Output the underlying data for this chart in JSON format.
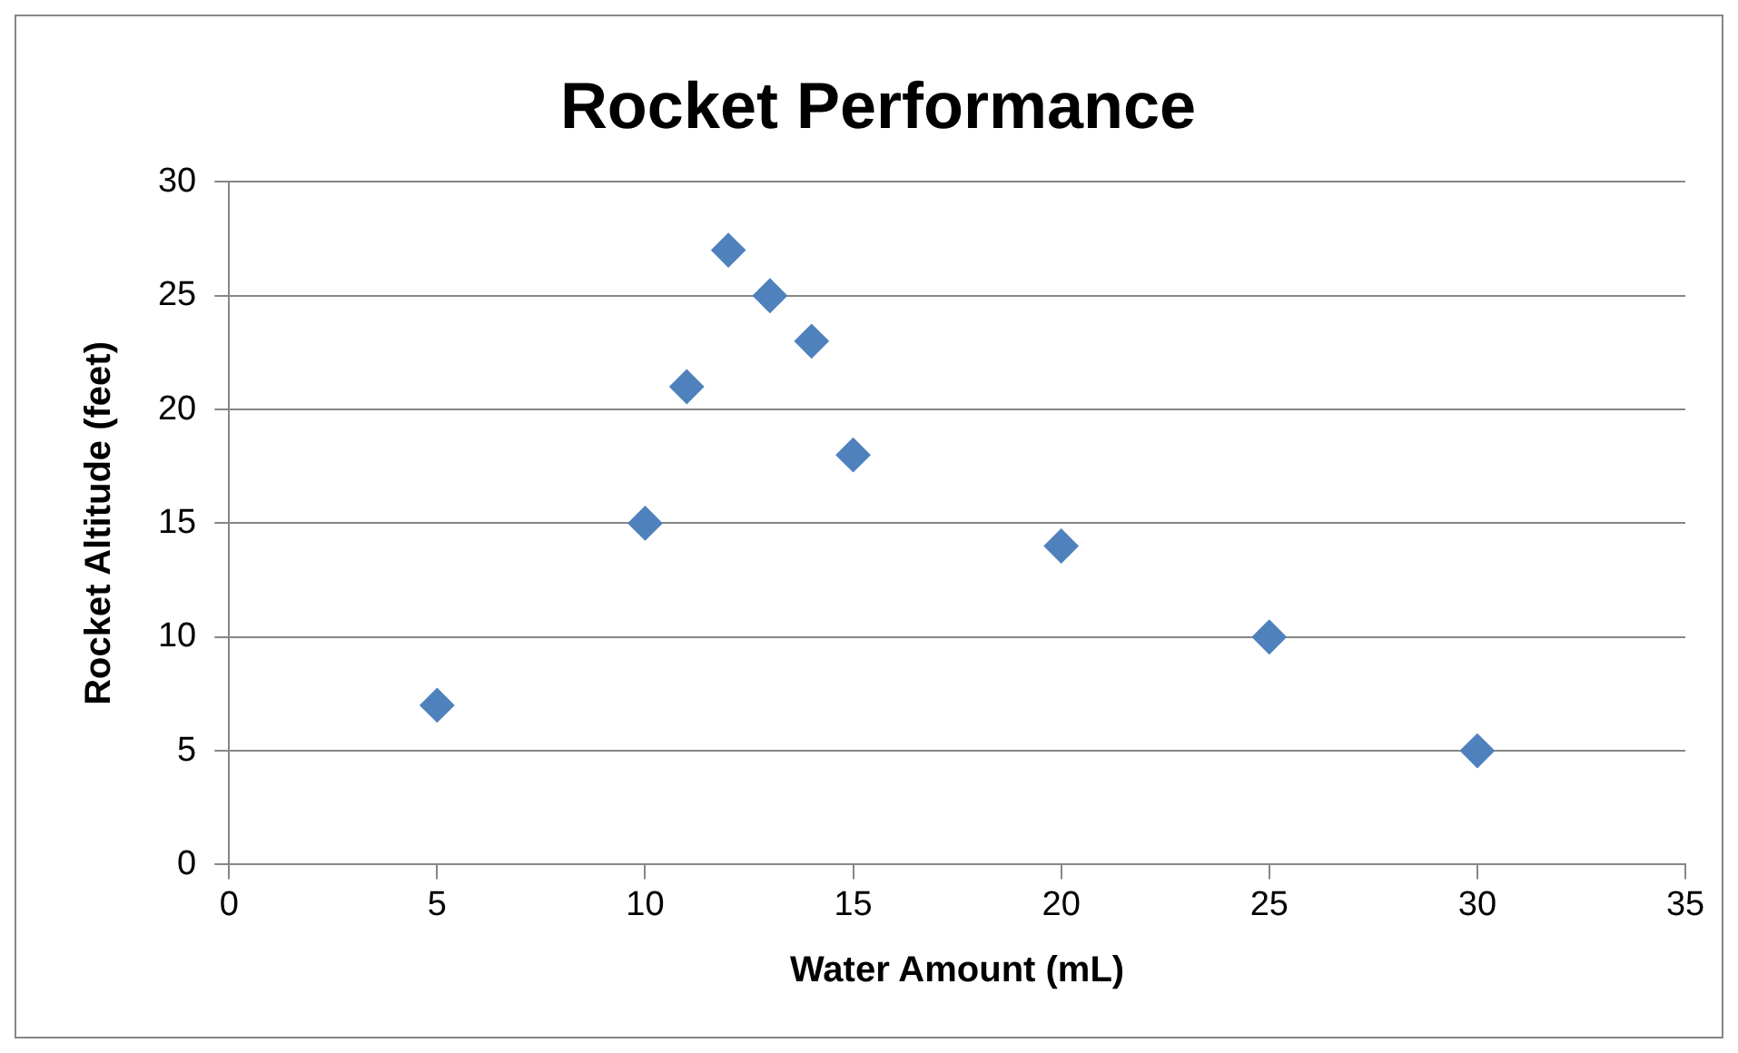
{
  "chart_data": {
    "type": "scatter",
    "title": "Rocket Performance",
    "xlabel": "Water Amount (mL)",
    "ylabel": "Rocket Altitude (feet)",
    "x": [
      5,
      10,
      11,
      12,
      13,
      14,
      15,
      20,
      25,
      30
    ],
    "series": [
      {
        "color": "#4f81bd",
        "values": [
          7,
          15,
          21,
          27,
          25,
          23,
          18,
          14,
          10,
          5
        ]
      }
    ],
    "xlim": [
      0,
      35
    ],
    "xticks": [
      0,
      5,
      10,
      15,
      20,
      25,
      30,
      35
    ],
    "ylim": [
      0,
      30
    ],
    "yticks": [
      0,
      5,
      10,
      15,
      20,
      25,
      30
    ],
    "grid": "y",
    "legend": false,
    "marker": "diamond"
  }
}
